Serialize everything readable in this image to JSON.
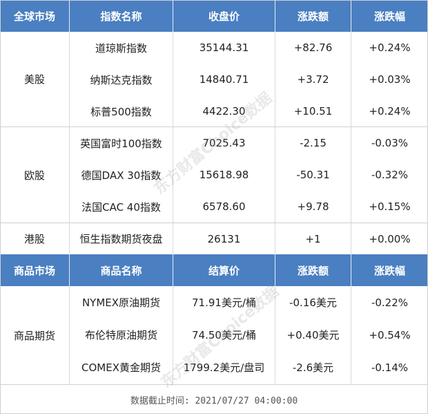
{
  "header1": [
    "全球市场",
    "指数名称",
    "收盘价",
    "涨跌额",
    "涨跌幅"
  ],
  "markets": [
    {
      "name": "美股",
      "rows": [
        [
          "道琼斯指数",
          "35144.31",
          "+82.76",
          "+0.24%"
        ],
        [
          "纳斯达克指数",
          "14840.71",
          "+3.72",
          "+0.03%"
        ],
        [
          "标普500指数",
          "4422.30",
          "+10.51",
          "+0.24%"
        ]
      ]
    },
    {
      "name": "欧股",
      "rows": [
        [
          "英国富时100指数",
          "7025.43",
          "-2.15",
          "-0.03%"
        ],
        [
          "德国DAX 30指数",
          "15618.98",
          "-50.31",
          "-0.32%"
        ],
        [
          "法国CAC 40指数",
          "6578.60",
          "+9.78",
          "+0.15%"
        ]
      ]
    },
    {
      "name": "港股",
      "rows": [
        [
          "恒生指数期货夜盘",
          "26131",
          "+1",
          "+0.00%"
        ]
      ]
    }
  ],
  "header2": [
    "商品市场",
    "商品名称",
    "结算价",
    "涨跌额",
    "涨跌幅"
  ],
  "commodities": {
    "name": "商品期货",
    "rows": [
      [
        "NYMEX原油期货",
        "71.91美元/桶",
        "-0.16美元",
        "-0.22%"
      ],
      [
        "布伦特原油期货",
        "74.50美元/桶",
        "+0.40美元",
        "+0.54%"
      ],
      [
        "COMEX黄金期货",
        "1799.2美元/盘司",
        "-2.6美元",
        "-0.14%"
      ]
    ]
  },
  "footer": "数据截止时间: 2021/07/27 04:00:00",
  "watermark": "东方财富Choice数据",
  "colors": {
    "header_bg": "#4a7fc1"
  }
}
